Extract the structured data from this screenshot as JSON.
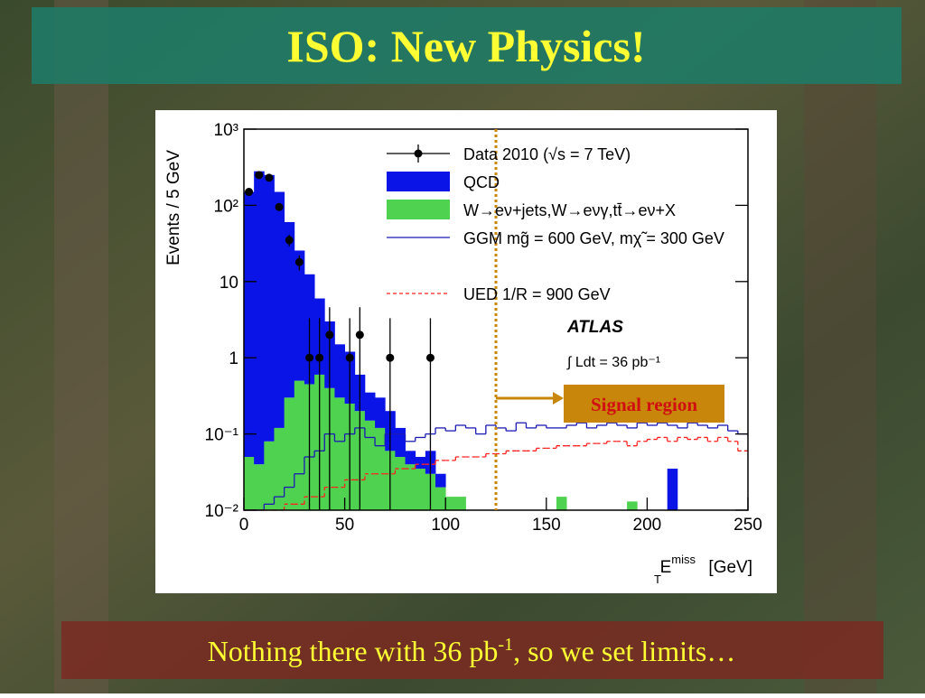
{
  "slide": {
    "title": "ISO: New Physics!",
    "caption": {
      "before": "Nothing there with 36 pb",
      "sup": "-1",
      "after": ", so we set limits…"
    }
  },
  "chart_data": {
    "type": "histogram",
    "y_label": "Events / 5 GeV",
    "x_label": {
      "symbol": "E",
      "sub": "T",
      "sup": "miss",
      "unit": "[GeV]"
    },
    "xlim": [
      0,
      250
    ],
    "xticks": [
      0,
      50,
      100,
      150,
      200,
      250
    ],
    "ylim": [
      0.01,
      1000
    ],
    "log_y": true,
    "yticks": [
      {
        "value": 0.01,
        "label": "10⁻²"
      },
      {
        "value": 0.1,
        "label": "10⁻¹"
      },
      1,
      10,
      {
        "value": 100,
        "label": "10²"
      },
      {
        "value": 1000,
        "label": "10³"
      }
    ],
    "bins": [
      0,
      5,
      10,
      15,
      20,
      25,
      30,
      35,
      40,
      45,
      50,
      55,
      60,
      65,
      70,
      75,
      80,
      85,
      90,
      95,
      100,
      105,
      110,
      115,
      120,
      125,
      130,
      135,
      140,
      145,
      150,
      155,
      160,
      165,
      170,
      175,
      180,
      185,
      190,
      195,
      200,
      205,
      210,
      215,
      220,
      225,
      230,
      235,
      240,
      245,
      250
    ],
    "series": [
      {
        "name": "Data 2010 (√s = 7 TeV)",
        "style": "points",
        "color": "#000000",
        "x": [
          2.5,
          7.5,
          12.5,
          17.5,
          22.5,
          27.5,
          32.5,
          37.5,
          42.5,
          52.5,
          57.5,
          72.5,
          92.5
        ],
        "values": [
          150,
          250,
          230,
          95,
          35,
          18,
          1,
          1,
          2,
          1,
          2,
          1,
          1
        ],
        "errors": [
          12,
          16,
          15,
          10,
          6,
          4,
          2.3,
          2.3,
          2.6,
          2.3,
          2.6,
          2.3,
          2.3
        ]
      },
      {
        "name": "QCD",
        "style": "fill",
        "color": "#0a14e6",
        "values": [
          150,
          280,
          250,
          150,
          60,
          25,
          12,
          5.4,
          2.6,
          1.2,
          0.95,
          0.4,
          0.2,
          0.18,
          0.14,
          0.07,
          0.02,
          0.015,
          0.03,
          0.01,
          0,
          0,
          0,
          0,
          0,
          0,
          0,
          0,
          0,
          0,
          0,
          0,
          0,
          0,
          0,
          0,
          0,
          0,
          0,
          0,
          0,
          0,
          0.035,
          0,
          0,
          0,
          0,
          0,
          0,
          0
        ]
      },
      {
        "name": "W→eν+jets,W→eνγ,tt̄→eν+X",
        "style": "fill",
        "color": "#4fd24f",
        "values": [
          0.05,
          0.04,
          0.08,
          0.12,
          0.3,
          0.5,
          0.45,
          0.6,
          0.4,
          0.3,
          0.25,
          0.2,
          0.15,
          0.12,
          0.06,
          0.05,
          0.04,
          0.035,
          0.03,
          0.02,
          0.015,
          0.015,
          0,
          0,
          0,
          0,
          0,
          0,
          0,
          0,
          0,
          0.015,
          0,
          0,
          0,
          0,
          0,
          0,
          0.013,
          0,
          0,
          0,
          0,
          0,
          0,
          0,
          0,
          0,
          0,
          0
        ]
      },
      {
        "name": "GGM mg̃ = 600 GeV, mχ̃ = 300 GeV",
        "style": "line",
        "color": "#1a1ab4",
        "values": [
          0.01,
          0.01,
          0.012,
          0.015,
          0.02,
          0.03,
          0.05,
          0.06,
          0.1,
          0.08,
          0.1,
          0.12,
          0.09,
          0.07,
          0.1,
          0.1,
          0.08,
          0.09,
          0.1,
          0.12,
          0.11,
          0.13,
          0.12,
          0.1,
          0.13,
          0.12,
          0.11,
          0.14,
          0.12,
          0.13,
          0.12,
          0.12,
          0.13,
          0.14,
          0.12,
          0.13,
          0.14,
          0.13,
          0.12,
          0.14,
          0.13,
          0.14,
          0.13,
          0.12,
          0.14,
          0.13,
          0.12,
          0.13,
          0.11,
          0.1
        ]
      },
      {
        "name": "UED 1/R = 900 GeV",
        "style": "dashed",
        "color": "#ff2020",
        "values": [
          0.01,
          0.01,
          0.01,
          0.01,
          0.012,
          0.012,
          0.015,
          0.015,
          0.02,
          0.02,
          0.025,
          0.025,
          0.03,
          0.03,
          0.03,
          0.035,
          0.035,
          0.04,
          0.04,
          0.045,
          0.045,
          0.05,
          0.05,
          0.05,
          0.055,
          0.055,
          0.06,
          0.06,
          0.06,
          0.065,
          0.065,
          0.07,
          0.07,
          0.07,
          0.075,
          0.075,
          0.08,
          0.08,
          0.07,
          0.08,
          0.085,
          0.09,
          0.08,
          0.09,
          0.085,
          0.09,
          0.08,
          0.09,
          0.08,
          0.06
        ]
      }
    ],
    "experiment": "ATLAS",
    "luminosity": "∫ Ldt = 36 pb⁻¹",
    "annotation": {
      "text": "Signal region",
      "x": 125,
      "color": "#c8860a"
    }
  }
}
